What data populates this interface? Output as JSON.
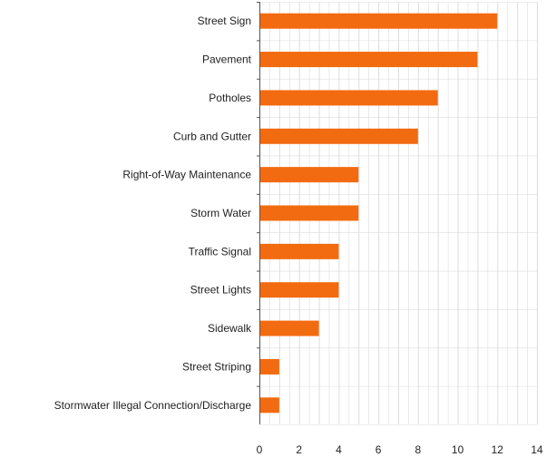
{
  "chart_data": {
    "type": "bar",
    "orientation": "horizontal",
    "categories": [
      "Street Sign",
      "Pavement",
      "Potholes",
      "Curb and Gutter",
      "Right-of-Way Maintenance",
      "Storm Water",
      "Traffic Signal",
      "Street Lights",
      "Sidewalk",
      "Street Striping",
      "Stormwater Illegal Connection/Discharge"
    ],
    "values": [
      12,
      11,
      9,
      8,
      5,
      5,
      4,
      4,
      3,
      1,
      1
    ],
    "xlim": [
      0,
      14
    ],
    "xticks": [
      0,
      2,
      4,
      6,
      8,
      10,
      12,
      14
    ],
    "title": "",
    "xlabel": "",
    "ylabel": "",
    "grid": true,
    "legend": "none",
    "colors": {
      "bar": "#f26b10",
      "grid": "#dddddd",
      "axis": "#555555"
    }
  }
}
